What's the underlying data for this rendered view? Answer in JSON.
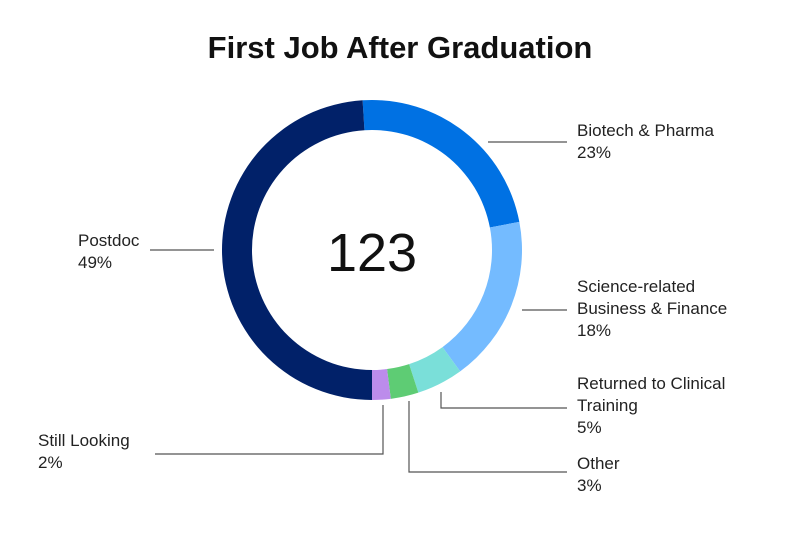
{
  "chart_data": {
    "type": "pie",
    "title": "First Job After Graduation",
    "center_label": "123",
    "slices": [
      {
        "name": "Biotech & Pharma",
        "value": 23,
        "label": "23%",
        "color": "#0071E3"
      },
      {
        "name": "Science-related Business & Finance",
        "value": 18,
        "label": "18%",
        "color": "#74BBFF"
      },
      {
        "name": "Returned to Clinical Training",
        "value": 5,
        "label": "5%",
        "color": "#7ADFD9"
      },
      {
        "name": "Other",
        "value": 3,
        "label": "3%",
        "color": "#5ECC74"
      },
      {
        "name": "Still Looking",
        "value": 2,
        "label": "2%",
        "color": "#BC8CEB"
      },
      {
        "name": "Postdoc",
        "value": 49,
        "label": "49%",
        "color": "#012169"
      }
    ]
  }
}
